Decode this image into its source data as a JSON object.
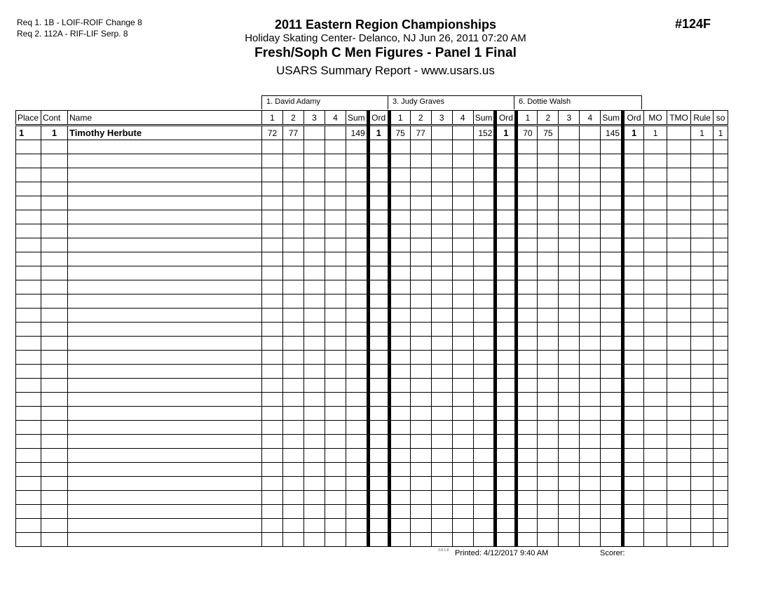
{
  "requirements": [
    "Req  1.  1B - LOIF-ROIF Change 8",
    "Req  2.  112A - RIF-LIF Serp. 8"
  ],
  "event_number": "#124F",
  "header": {
    "title": "2011 Eastern Region Championships",
    "venue": "Holiday Skating Center-  Delanco, NJ  Jun 26, 2011  07:20 AM",
    "event": "Fresh/Soph C Men Figures - Panel 1 Final",
    "report": "USARS Summary Report - www.usars.us"
  },
  "judges": [
    "1.  David Adamy",
    "3.  Judy Graves",
    "6.  Dottie Walsh"
  ],
  "columns": [
    "Place",
    "Cont",
    "Name",
    "1",
    "2",
    "3",
    "4",
    "Sum",
    "Ord",
    "1",
    "2",
    "3",
    "4",
    "Sum",
    "Ord",
    "1",
    "2",
    "3",
    "4",
    "Sum",
    "Ord",
    "MO",
    "TMO",
    "Rule",
    "so"
  ],
  "rows": [
    {
      "place": "1",
      "cont": "1",
      "name": "Timothy Herbute",
      "j1": [
        "72",
        "77",
        "",
        "",
        "149",
        "1"
      ],
      "j2": [
        "75",
        "77",
        "",
        "",
        "152",
        "1"
      ],
      "j3": [
        "70",
        "75",
        "",
        "",
        "145",
        "1"
      ],
      "mo": "1",
      "tmo": "",
      "rule": "1",
      "so": "1"
    }
  ],
  "footer": {
    "version": "3.8.1.8",
    "printed": "Printed:  4/12/2017  9:40 AM",
    "scorer": "Scorer:"
  }
}
